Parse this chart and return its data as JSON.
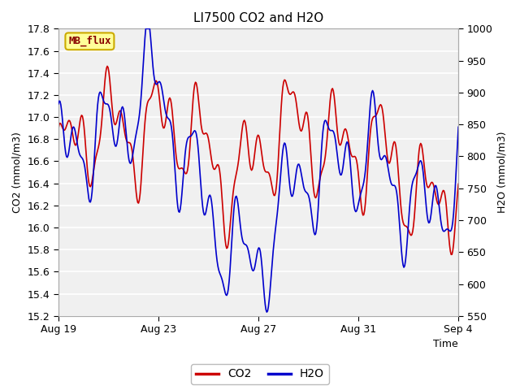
{
  "title": "LI7500 CO2 and H2O",
  "xlabel": "Time",
  "ylabel_left": "CO2 (mmol/m3)",
  "ylabel_right": "H2O (mmol/m3)",
  "ylim_left": [
    15.2,
    17.8
  ],
  "ylim_right": [
    550,
    1000
  ],
  "yticks_left": [
    15.2,
    15.4,
    15.6,
    15.8,
    16.0,
    16.2,
    16.4,
    16.6,
    16.8,
    17.0,
    17.2,
    17.4,
    17.6,
    17.8
  ],
  "yticks_right": [
    550,
    600,
    650,
    700,
    750,
    800,
    850,
    900,
    950,
    1000
  ],
  "xtick_labels": [
    "Aug 19",
    "Aug 23",
    "Aug 27",
    "Aug 31",
    "Sep 4"
  ],
  "xtick_positions": [
    0,
    4,
    8,
    12,
    16
  ],
  "xlim": [
    0,
    16
  ],
  "co2_color": "#cc0000",
  "h2o_color": "#0000cc",
  "fig_bg_color": "#ffffff",
  "plot_bg_color": "#f0f0f0",
  "grid_color": "#ffffff",
  "legend_label_co2": "CO2",
  "legend_label_h2o": "H2O",
  "tag_text": "MB_flux",
  "tag_bg": "#ffff99",
  "tag_border": "#ccaa00",
  "tag_text_color": "#880000",
  "title_fontsize": 11,
  "axis_fontsize": 9,
  "tick_fontsize": 9,
  "linewidth": 1.2
}
